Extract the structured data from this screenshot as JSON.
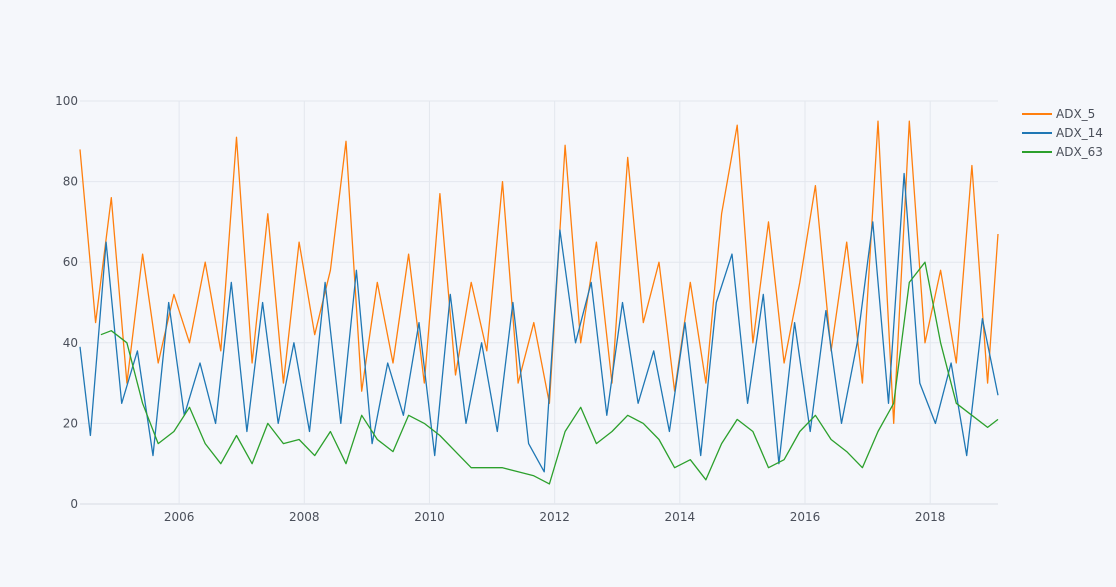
{
  "chart_data": {
    "type": "line",
    "title": "",
    "xlabel": "",
    "ylabel": "",
    "x_range": [
      "2004-06",
      "2019-02"
    ],
    "ylim": [
      0,
      100
    ],
    "grid": true,
    "legend_position": "top-right",
    "x_tick_labels": [
      "2006",
      "2008",
      "2010",
      "2012",
      "2014",
      "2016",
      "2018"
    ],
    "y_tick_labels": [
      "0",
      "20",
      "40",
      "60",
      "80",
      "100"
    ],
    "series": [
      {
        "name": "ADX_5",
        "color": "#ff7f0e",
        "points": [
          [
            "2004-06",
            88
          ],
          [
            "2004-09",
            45
          ],
          [
            "2004-12",
            76
          ],
          [
            "2005-03",
            30
          ],
          [
            "2005-06",
            62
          ],
          [
            "2005-09",
            35
          ],
          [
            "2005-12",
            52
          ],
          [
            "2006-03",
            40
          ],
          [
            "2006-06",
            60
          ],
          [
            "2006-09",
            38
          ],
          [
            "2006-12",
            91
          ],
          [
            "2007-03",
            35
          ],
          [
            "2007-06",
            72
          ],
          [
            "2007-09",
            30
          ],
          [
            "2007-12",
            65
          ],
          [
            "2008-03",
            42
          ],
          [
            "2008-06",
            58
          ],
          [
            "2008-09",
            90
          ],
          [
            "2008-12",
            28
          ],
          [
            "2009-03",
            55
          ],
          [
            "2009-06",
            35
          ],
          [
            "2009-09",
            62
          ],
          [
            "2009-12",
            30
          ],
          [
            "2010-03",
            77
          ],
          [
            "2010-06",
            32
          ],
          [
            "2010-09",
            55
          ],
          [
            "2010-12",
            38
          ],
          [
            "2011-03",
            80
          ],
          [
            "2011-06",
            30
          ],
          [
            "2011-09",
            45
          ],
          [
            "2011-12",
            25
          ],
          [
            "2012-03",
            89
          ],
          [
            "2012-06",
            40
          ],
          [
            "2012-09",
            65
          ],
          [
            "2012-12",
            30
          ],
          [
            "2013-03",
            86
          ],
          [
            "2013-06",
            45
          ],
          [
            "2013-09",
            60
          ],
          [
            "2013-12",
            28
          ],
          [
            "2014-03",
            55
          ],
          [
            "2014-06",
            30
          ],
          [
            "2014-09",
            72
          ],
          [
            "2014-12",
            94
          ],
          [
            "2015-03",
            40
          ],
          [
            "2015-06",
            70
          ],
          [
            "2015-09",
            35
          ],
          [
            "2015-12",
            55
          ],
          [
            "2016-03",
            79
          ],
          [
            "2016-06",
            38
          ],
          [
            "2016-09",
            65
          ],
          [
            "2016-12",
            30
          ],
          [
            "2017-03",
            95
          ],
          [
            "2017-06",
            20
          ],
          [
            "2017-09",
            95
          ],
          [
            "2017-12",
            40
          ],
          [
            "2018-03",
            58
          ],
          [
            "2018-06",
            35
          ],
          [
            "2018-09",
            84
          ],
          [
            "2018-12",
            30
          ],
          [
            "2019-02",
            67
          ]
        ]
      },
      {
        "name": "ADX_14",
        "color": "#1f77b4",
        "points": [
          [
            "2004-06",
            39
          ],
          [
            "2004-08",
            17
          ],
          [
            "2004-11",
            65
          ],
          [
            "2005-02",
            25
          ],
          [
            "2005-05",
            38
          ],
          [
            "2005-08",
            12
          ],
          [
            "2005-11",
            50
          ],
          [
            "2006-02",
            22
          ],
          [
            "2006-05",
            35
          ],
          [
            "2006-08",
            20
          ],
          [
            "2006-11",
            55
          ],
          [
            "2007-02",
            18
          ],
          [
            "2007-05",
            50
          ],
          [
            "2007-08",
            20
          ],
          [
            "2007-11",
            40
          ],
          [
            "2008-02",
            18
          ],
          [
            "2008-05",
            55
          ],
          [
            "2008-08",
            20
          ],
          [
            "2008-11",
            58
          ],
          [
            "2009-02",
            15
          ],
          [
            "2009-05",
            35
          ],
          [
            "2009-08",
            22
          ],
          [
            "2009-11",
            45
          ],
          [
            "2010-02",
            12
          ],
          [
            "2010-05",
            52
          ],
          [
            "2010-08",
            20
          ],
          [
            "2010-11",
            40
          ],
          [
            "2011-02",
            18
          ],
          [
            "2011-05",
            50
          ],
          [
            "2011-08",
            15
          ],
          [
            "2011-11",
            8
          ],
          [
            "2012-02",
            68
          ],
          [
            "2012-05",
            40
          ],
          [
            "2012-08",
            55
          ],
          [
            "2012-11",
            22
          ],
          [
            "2013-02",
            50
          ],
          [
            "2013-05",
            25
          ],
          [
            "2013-08",
            38
          ],
          [
            "2013-11",
            18
          ],
          [
            "2014-02",
            45
          ],
          [
            "2014-05",
            12
          ],
          [
            "2014-08",
            50
          ],
          [
            "2014-11",
            62
          ],
          [
            "2015-02",
            25
          ],
          [
            "2015-05",
            52
          ],
          [
            "2015-08",
            10
          ],
          [
            "2015-11",
            45
          ],
          [
            "2016-02",
            18
          ],
          [
            "2016-05",
            48
          ],
          [
            "2016-08",
            20
          ],
          [
            "2016-11",
            40
          ],
          [
            "2017-02",
            70
          ],
          [
            "2017-05",
            25
          ],
          [
            "2017-08",
            82
          ],
          [
            "2017-11",
            30
          ],
          [
            "2018-02",
            20
          ],
          [
            "2018-05",
            35
          ],
          [
            "2018-08",
            12
          ],
          [
            "2018-11",
            46
          ],
          [
            "2019-02",
            27
          ]
        ]
      },
      {
        "name": "ADX_63",
        "color": "#2ca02c",
        "points": [
          [
            "2004-10",
            42
          ],
          [
            "2004-12",
            43
          ],
          [
            "2005-03",
            40
          ],
          [
            "2005-06",
            25
          ],
          [
            "2005-09",
            15
          ],
          [
            "2005-12",
            18
          ],
          [
            "2006-03",
            24
          ],
          [
            "2006-06",
            15
          ],
          [
            "2006-09",
            10
          ],
          [
            "2006-12",
            17
          ],
          [
            "2007-03",
            10
          ],
          [
            "2007-06",
            20
          ],
          [
            "2007-09",
            15
          ],
          [
            "2007-12",
            16
          ],
          [
            "2008-03",
            12
          ],
          [
            "2008-06",
            18
          ],
          [
            "2008-09",
            10
          ],
          [
            "2008-12",
            22
          ],
          [
            "2009-03",
            16
          ],
          [
            "2009-06",
            13
          ],
          [
            "2009-09",
            22
          ],
          [
            "2009-12",
            20
          ],
          [
            "2010-03",
            17
          ],
          [
            "2010-06",
            13
          ],
          [
            "2010-09",
            9
          ],
          [
            "2010-12",
            9
          ],
          [
            "2011-03",
            9
          ],
          [
            "2011-06",
            8
          ],
          [
            "2011-09",
            7
          ],
          [
            "2011-12",
            5
          ],
          [
            "2012-03",
            18
          ],
          [
            "2012-06",
            24
          ],
          [
            "2012-09",
            15
          ],
          [
            "2012-12",
            18
          ],
          [
            "2013-03",
            22
          ],
          [
            "2013-06",
            20
          ],
          [
            "2013-09",
            16
          ],
          [
            "2013-12",
            9
          ],
          [
            "2014-03",
            11
          ],
          [
            "2014-06",
            6
          ],
          [
            "2014-09",
            15
          ],
          [
            "2014-12",
            21
          ],
          [
            "2015-03",
            18
          ],
          [
            "2015-06",
            9
          ],
          [
            "2015-09",
            11
          ],
          [
            "2015-12",
            18
          ],
          [
            "2016-03",
            22
          ],
          [
            "2016-06",
            16
          ],
          [
            "2016-09",
            13
          ],
          [
            "2016-12",
            9
          ],
          [
            "2017-03",
            18
          ],
          [
            "2017-06",
            25
          ],
          [
            "2017-09",
            55
          ],
          [
            "2017-12",
            60
          ],
          [
            "2018-03",
            40
          ],
          [
            "2018-06",
            25
          ],
          [
            "2018-09",
            22
          ],
          [
            "2018-12",
            19
          ],
          [
            "2019-02",
            21
          ]
        ]
      }
    ]
  }
}
